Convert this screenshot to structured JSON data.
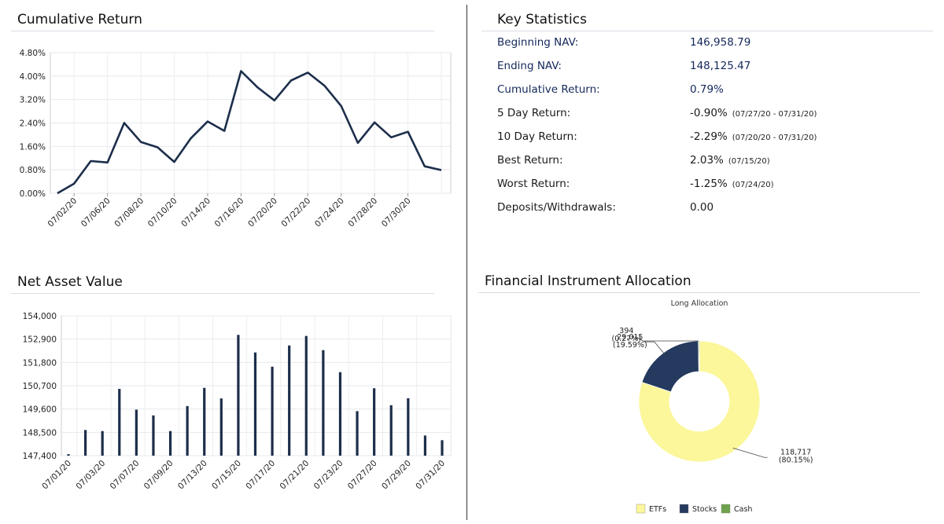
{
  "panels": {
    "cumulative_title": "Cumulative Return",
    "nav_title": "Net Asset Value",
    "stats_title": "Key Statistics",
    "allocation_title": "Financial Instrument Allocation"
  },
  "stats": [
    {
      "label": "Beginning NAV:",
      "value": "146,958.79",
      "range": ""
    },
    {
      "label": "Ending NAV:",
      "value": "148,125.47",
      "range": ""
    },
    {
      "label": "Cumulative Return:",
      "value": "0.79%",
      "range": ""
    },
    {
      "label": "5 Day Return:",
      "value": "-0.90%",
      "range": "(07/27/20 - 07/31/20)"
    },
    {
      "label": "10 Day Return:",
      "value": "-2.29%",
      "range": "(07/20/20 - 07/31/20)"
    },
    {
      "label": "Best Return:",
      "value": "2.03%",
      "range": "(07/15/20)"
    },
    {
      "label": "Worst Return:",
      "value": "-1.25%",
      "range": "(07/24/20)"
    },
    {
      "label": "Deposits/Withdrawals:",
      "value": "0.00",
      "range": ""
    }
  ],
  "chart_data": [
    {
      "type": "line",
      "title": "Cumulative Return",
      "ylim": [
        0,
        4.8
      ],
      "yticks": [
        "0.00%",
        "0.80%",
        "1.60%",
        "2.40%",
        "3.20%",
        "4.00%",
        "4.80%"
      ],
      "xticks": [
        "07/02/20",
        "07/06/20",
        "07/08/20",
        "07/10/20",
        "07/14/20",
        "07/16/20",
        "07/20/20",
        "07/22/20",
        "07/24/20",
        "07/28/20",
        "07/30/20"
      ],
      "series": [
        {
          "values": [
            0.0,
            0.33,
            1.1,
            1.05,
            2.4,
            1.75,
            1.57,
            1.07,
            1.88,
            2.45,
            2.13,
            4.17,
            3.61,
            3.17,
            3.85,
            4.12,
            3.67,
            2.98,
            1.72,
            2.42,
            1.91,
            2.1,
            0.92,
            0.79
          ]
        }
      ],
      "color": "#1c2e4a",
      "grid": true
    },
    {
      "type": "bar",
      "title": "Net Asset Value",
      "ylim": [
        147400,
        154000
      ],
      "yticks": [
        "147,400",
        "148,500",
        "149,600",
        "150,700",
        "151,800",
        "152,900",
        "154,000"
      ],
      "xticks": [
        "07/01/20",
        "07/03/20",
        "07/07/20",
        "07/09/20",
        "07/13/20",
        "07/15/20",
        "07/17/20",
        "07/21/20",
        "07/23/20",
        "07/27/20",
        "07/29/20",
        "07/31/20"
      ],
      "values": [
        147470,
        148610,
        148560,
        150550,
        149570,
        149300,
        148560,
        149740,
        150600,
        150100,
        153100,
        152270,
        151600,
        152600,
        153050,
        152380,
        151340,
        149500,
        150580,
        149780,
        150110,
        148350,
        148130
      ],
      "color": "#1c2e4a",
      "grid": true
    },
    {
      "type": "pie",
      "title": "Long Allocation",
      "labels": [
        "ETFs",
        "Stocks",
        "Cash"
      ],
      "values": [
        118717,
        29015,
        394
      ],
      "value_labels": [
        "118,717",
        "29,015",
        "394"
      ],
      "pct_labels": [
        "(80.15%)",
        "(19.59%)",
        "(0.27%)"
      ],
      "colors": [
        "#fbf79a",
        "#243a5e",
        "#6fa24c"
      ],
      "legend": "bottom"
    }
  ]
}
